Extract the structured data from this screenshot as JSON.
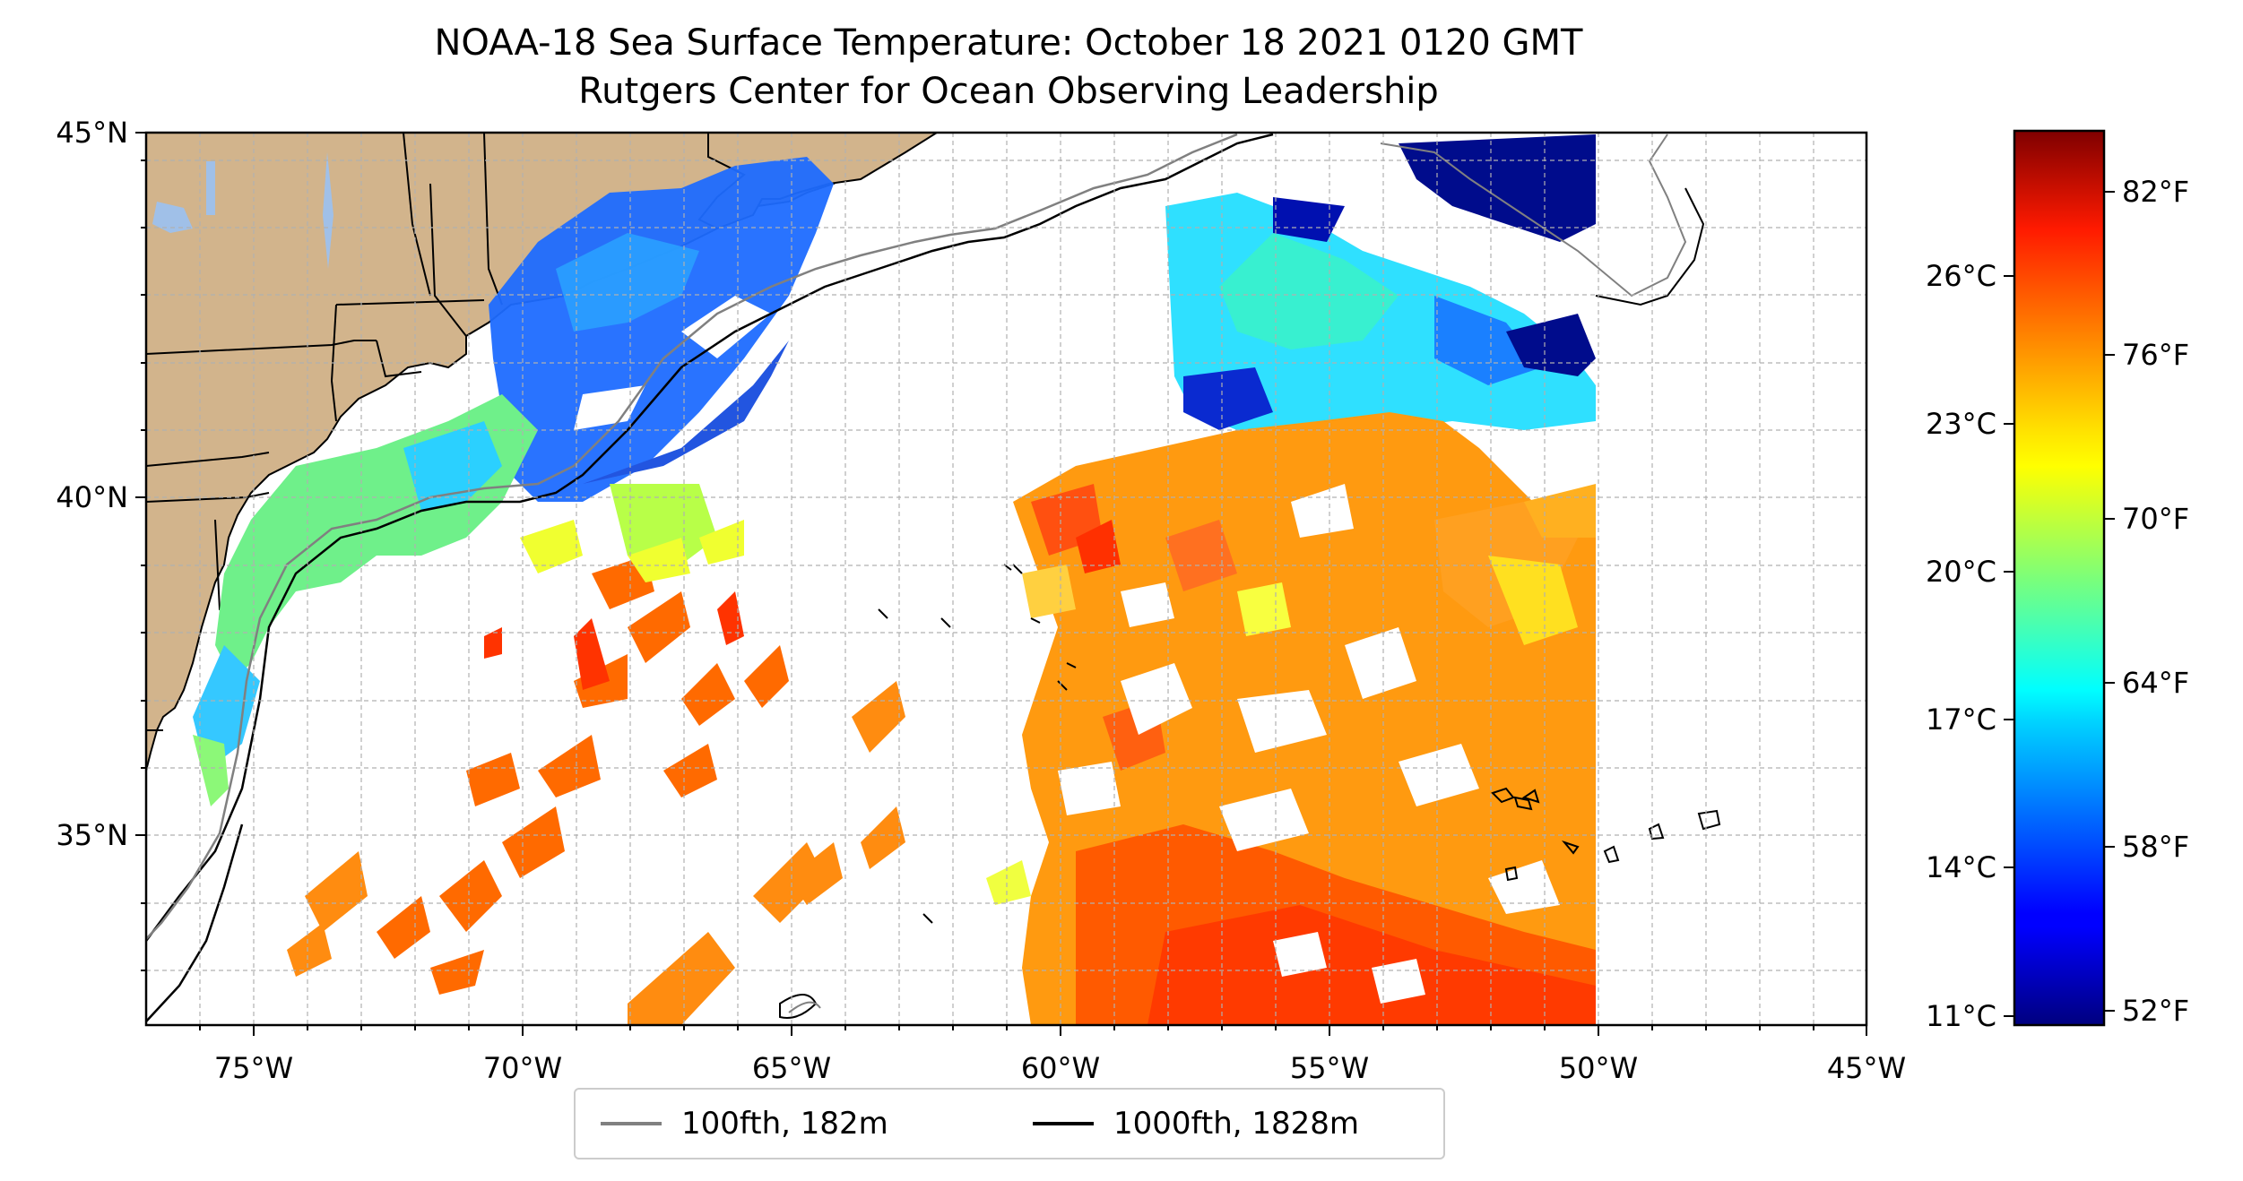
{
  "title_line1": "NOAA-18 Sea Surface Temperature: October 18 2021 0120 GMT",
  "title_line2": "Rutgers Center for Ocean Observing Leadership",
  "map": {
    "lon_range": [
      -77,
      -45
    ],
    "lat_range": [
      32.3,
      45
    ],
    "lon_ticks": [
      "75°W",
      "70°W",
      "65°W",
      "60°W",
      "55°W",
      "50°W",
      "45°W"
    ],
    "lat_ticks": [
      "35°N",
      "40°N",
      "45°N"
    ],
    "land_color": "#d2b48c",
    "lake_color": "#a0c0e8",
    "colormap": "jet"
  },
  "colorbar": {
    "celsius_labels": [
      "11°C",
      "14°C",
      "17°C",
      "20°C",
      "23°C",
      "26°C"
    ],
    "fahrenheit_labels": [
      "52°F",
      "58°F",
      "64°F",
      "70°F",
      "76°F",
      "82°F"
    ],
    "range_f": [
      51,
      85
    ]
  },
  "legend": {
    "item1": {
      "label": "100fth, 182m",
      "color": "#808080"
    },
    "item2": {
      "label": "1000fth, 1828m",
      "color": "#000000"
    }
  }
}
